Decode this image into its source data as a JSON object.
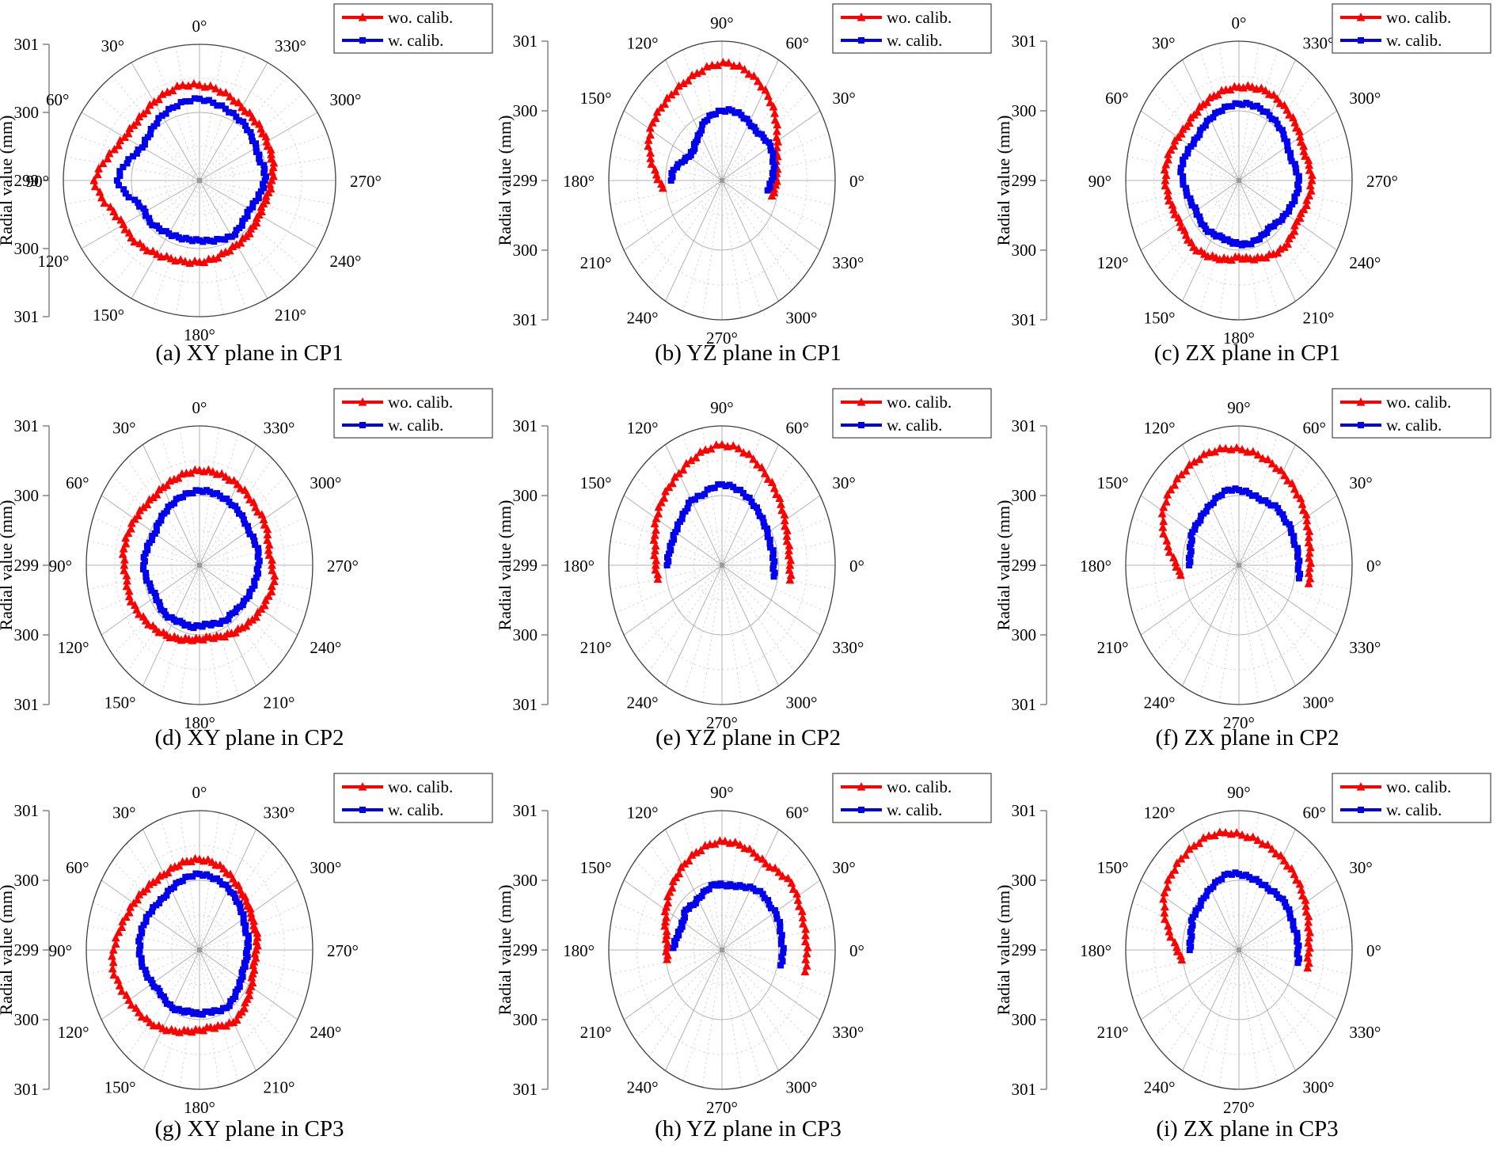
{
  "chart_data": {
    "type": "line",
    "subtype": "polar-multiples",
    "figure": "3x3 polar roundness comparison plots",
    "radial_axis": {
      "label": "Radial value (mm)",
      "center_value": 299,
      "outer_value": 301,
      "tick_labels": [
        "301",
        "300",
        "299",
        "300",
        "301"
      ],
      "tick_offsets": [
        2,
        1,
        0,
        -1,
        -2
      ],
      "major_rings": [
        300,
        301
      ],
      "minor_rings": [
        299.5,
        300.5
      ]
    },
    "angle_grid": {
      "major_step_deg": 30,
      "minor_step_deg": 10,
      "direction": "counterclockwise"
    },
    "angle_labels": [
      "0°",
      "30°",
      "60°",
      "90°",
      "120°",
      "150°",
      "180°",
      "210°",
      "240°",
      "270°",
      "300°",
      "330°"
    ],
    "legend": [
      {
        "label": "wo. calib.",
        "color": "#ff0000",
        "marker": "triangle"
      },
      {
        "label": "w. calib.",
        "color": "#0000ee",
        "marker": "square"
      }
    ],
    "plots": [
      {
        "id": "a",
        "caption": "(a) XY plane in CP1",
        "top_angle": 0,
        "series": [
          {
            "name": "wo. calib.",
            "start": 0,
            "step": 10,
            "closed": true,
            "values": [
              300.4,
              300.42,
              300.38,
              300.33,
              300.28,
              300.26,
              300.27,
              300.33,
              300.44,
              300.55,
              300.46,
              300.34,
              300.29,
              300.31,
              300.28,
              300.25,
              300.22,
              300.21,
              300.2,
              300.17,
              300.12,
              300.09,
              300.07,
              300.04,
              300.01,
              300.0,
              300.03,
              300.06,
              300.1,
              300.12,
              300.14,
              300.18,
              300.21,
              300.24,
              300.31,
              300.37
            ]
          },
          {
            "name": "w. calib.",
            "start": 0,
            "step": 10,
            "closed": true,
            "values": [
              300.2,
              300.18,
              300.14,
              300.1,
              300.04,
              299.99,
              299.97,
              300.04,
              300.14,
              300.21,
              300.1,
              299.96,
              299.92,
              299.95,
              299.92,
              299.9,
              299.89,
              299.88,
              299.88,
              299.9,
              299.92,
              299.95,
              299.91,
              299.87,
              299.85,
              299.88,
              299.92,
              299.96,
              299.97,
              299.93,
              299.96,
              300.0,
              300.05,
              300.08,
              300.12,
              300.16
            ]
          }
        ]
      },
      {
        "id": "b",
        "caption": "(b) YZ plane in CP1",
        "top_angle": 90,
        "series": [
          {
            "name": "wo. calib.",
            "start": -14,
            "step": 10,
            "closed": false,
            "values": [
              299.91,
              299.95,
              299.97,
              300.0,
              300.08,
              300.2,
              300.34,
              300.46,
              300.56,
              300.64,
              300.69,
              300.66,
              300.6,
              300.55,
              300.52,
              300.5,
              300.48,
              300.42,
              300.3,
              300.16,
              300.05
            ]
          },
          {
            "name": "w. calib.",
            "start": -10,
            "step": 10,
            "closed": false,
            "values": [
              299.82,
              299.88,
              299.93,
              299.96,
              299.99,
              299.96,
              299.93,
              299.96,
              300.0,
              300.02,
              300.0,
              299.96,
              299.9,
              299.78,
              299.72,
              299.66,
              299.68,
              299.76,
              299.87,
              299.9
            ]
          }
        ]
      },
      {
        "id": "c",
        "caption": "(c) ZX plane in CP1",
        "top_angle": 0,
        "series": [
          {
            "name": "wo. calib.",
            "start": 0,
            "step": 10,
            "closed": true,
            "values": [
              300.34,
              300.32,
              300.29,
              300.26,
              300.23,
              300.21,
              300.24,
              300.28,
              300.31,
              300.3,
              300.27,
              300.23,
              300.2,
              300.22,
              300.25,
              300.22,
              300.18,
              300.15,
              300.1,
              300.14,
              300.18,
              300.22,
              300.25,
              300.22,
              300.18,
              300.22,
              300.26,
              300.29,
              300.26,
              300.22,
              300.25,
              300.29,
              300.32,
              300.35,
              300.37,
              300.36
            ]
          },
          {
            "name": "w. calib.",
            "start": 0,
            "step": 10,
            "closed": true,
            "values": [
              300.1,
              300.08,
              300.05,
              300.02,
              299.99,
              299.96,
              299.98,
              300.01,
              300.04,
              299.99,
              299.94,
              299.9,
              299.87,
              299.89,
              299.91,
              299.89,
              299.87,
              299.89,
              299.91,
              299.93,
              299.91,
              299.89,
              299.87,
              299.92,
              299.96,
              300.0,
              300.04,
              300.06,
              300.02,
              299.97,
              299.99,
              300.03,
              300.06,
              300.08,
              300.1,
              300.11
            ]
          }
        ]
      },
      {
        "id": "d",
        "caption": "(d) XY plane in CP2",
        "top_angle": 0,
        "series": [
          {
            "name": "wo. calib.",
            "start": 0,
            "step": 10,
            "closed": true,
            "values": [
              300.36,
              300.34,
              300.31,
              300.29,
              300.27,
              300.29,
              300.32,
              300.34,
              300.36,
              300.33,
              300.3,
              300.32,
              300.28,
              300.24,
              300.2,
              300.16,
              300.12,
              300.08,
              300.06,
              300.05,
              300.09,
              300.13,
              300.17,
              300.22,
              300.26,
              300.3,
              300.34,
              300.28,
              300.24,
              300.28,
              300.31,
              300.29,
              300.32,
              300.34,
              300.35,
              300.36
            ]
          },
          {
            "name": "w. calib.",
            "start": 0,
            "step": 10,
            "closed": true,
            "values": [
              300.07,
              300.05,
              300.03,
              300.0,
              299.97,
              299.94,
              299.91,
              299.94,
              299.97,
              299.99,
              299.96,
              299.92,
              299.89,
              299.91,
              299.93,
              299.9,
              299.88,
              299.9,
              299.87,
              299.86,
              299.89,
              299.92,
              299.9,
              299.93,
              299.96,
              299.99,
              300.02,
              300.04,
              300.06,
              300.03,
              300.0,
              300.02,
              300.04,
              300.05,
              300.06,
              300.07
            ]
          }
        ]
      },
      {
        "id": "e",
        "caption": "(e) YZ plane in CP2",
        "top_angle": 90,
        "series": [
          {
            "name": "wo. calib.",
            "start": -10,
            "step": 10,
            "closed": false,
            "values": [
              300.22,
              300.2,
              300.2,
              300.22,
              300.28,
              300.36,
              300.44,
              300.52,
              300.62,
              300.7,
              300.73,
              300.68,
              300.6,
              300.52,
              300.46,
              300.4,
              300.34,
              300.26,
              300.2,
              300.17,
              300.15
            ]
          },
          {
            "name": "w. calib.",
            "start": -10,
            "step": 10,
            "closed": false,
            "values": [
              299.93,
              299.91,
              299.92,
              299.9,
              299.93,
              299.96,
              300.0,
              300.05,
              300.1,
              300.14,
              300.16,
              300.12,
              300.06,
              300.08,
              300.01,
              299.97,
              299.95,
              299.94,
              299.95,
              299.97
            ]
          }
        ]
      },
      {
        "id": "f",
        "caption": "(f) ZX plane in CP2",
        "top_angle": 90,
        "series": [
          {
            "name": "wo. calib.",
            "start": -12,
            "step": 10,
            "closed": false,
            "values": [
              300.26,
              300.25,
              300.26,
              300.3,
              300.36,
              300.42,
              300.47,
              300.52,
              300.57,
              300.62,
              300.66,
              300.69,
              300.7,
              300.68,
              300.65,
              300.62,
              300.57,
              300.45,
              300.28,
              300.12,
              300.04
            ]
          },
          {
            "name": "w. calib.",
            "start": -10,
            "step": 10,
            "closed": false,
            "values": [
              300.08,
              300.05,
              300.06,
              300.03,
              300.06,
              300.04,
              300.07,
              300.03,
              300.02,
              300.05,
              300.08,
              300.1,
              300.05,
              300.0,
              299.97,
              299.94,
              299.95,
              299.9,
              299.87,
              299.88
            ]
          }
        ]
      },
      {
        "id": "g",
        "caption": "(g) XY plane in CP3",
        "top_angle": 0,
        "series": [
          {
            "name": "wo. calib.",
            "start": 0,
            "step": 10,
            "closed": true,
            "values": [
              300.3,
              300.29,
              300.27,
              300.25,
              300.27,
              300.3,
              300.34,
              300.38,
              300.45,
              300.52,
              300.56,
              300.5,
              300.44,
              300.4,
              300.36,
              300.3,
              300.24,
              300.18,
              300.15,
              300.13,
              300.16,
              300.2,
              300.16,
              300.1,
              300.05,
              300.0,
              299.98,
              300.0,
              300.04,
              300.02,
              300.05,
              300.08,
              300.12,
              300.18,
              300.24,
              300.28
            ]
          },
          {
            "name": "w. calib.",
            "start": 0,
            "step": 10,
            "closed": true,
            "values": [
              300.09,
              300.07,
              300.04,
              300.01,
              299.98,
              300.0,
              300.03,
              300.05,
              300.07,
              300.06,
              300.04,
              300.0,
              299.96,
              299.92,
              299.94,
              299.96,
              299.93,
              299.9,
              299.92,
              299.9,
              299.93,
              299.96,
              299.92,
              299.88,
              299.85,
              299.82,
              299.84,
              299.84,
              299.88,
              299.86,
              299.9,
              299.94,
              299.98,
              300.02,
              300.05,
              300.07
            ]
          }
        ]
      },
      {
        "id": "h",
        "caption": "(h) YZ plane in CP3",
        "top_angle": 90,
        "series": [
          {
            "name": "wo. calib.",
            "start": -12,
            "step": 10,
            "closed": false,
            "values": [
              300.5,
              300.5,
              300.49,
              300.5,
              300.52,
              300.56,
              300.5,
              300.46,
              300.5,
              300.54,
              300.56,
              300.53,
              300.47,
              300.4,
              300.32,
              300.24,
              300.16,
              300.08,
              300.0,
              299.97,
              299.98
            ]
          },
          {
            "name": "w. calib.",
            "start": -12,
            "step": 10,
            "closed": false,
            "values": [
              300.06,
              300.08,
              300.06,
              300.08,
              300.09,
              300.06,
              300.08,
              300.04,
              299.98,
              299.94,
              299.93,
              299.95,
              299.9,
              299.85,
              299.82,
              299.86,
              299.8,
              299.79,
              299.82,
              299.86
            ]
          }
        ]
      },
      {
        "id": "i",
        "caption": "(i) ZX plane in CP3",
        "top_angle": 90,
        "series": [
          {
            "name": "wo. calib.",
            "start": -12,
            "step": 10,
            "closed": false,
            "values": [
              300.24,
              300.23,
              300.25,
              300.29,
              300.34,
              300.4,
              300.46,
              300.51,
              300.56,
              300.61,
              300.65,
              300.7,
              300.72,
              300.69,
              300.66,
              300.61,
              300.55,
              300.42,
              300.26,
              300.1,
              300.02
            ]
          },
          {
            "name": "w. calib.",
            "start": -10,
            "step": 10,
            "closed": false,
            "values": [
              300.06,
              300.04,
              300.05,
              300.02,
              300.04,
              300.06,
              300.04,
              300.02,
              300.04,
              300.06,
              300.09,
              300.11,
              300.06,
              300.01,
              299.97,
              299.93,
              299.94,
              299.89,
              299.86,
              299.87
            ]
          }
        ]
      }
    ],
    "style_colors": {
      "outer_ring": "#404040",
      "major_grid": "#b3b3b3",
      "minor_grid": "#d0d0d0",
      "axis_line": "#7a7a7a",
      "text": "#000000"
    }
  }
}
